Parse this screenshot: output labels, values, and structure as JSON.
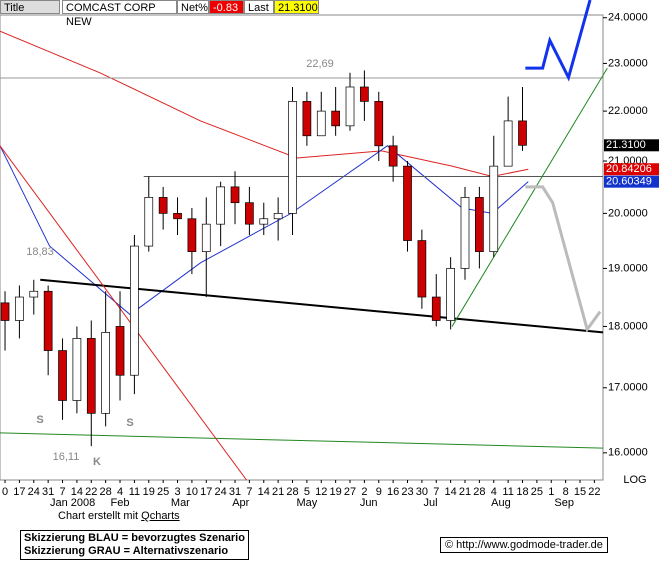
{
  "header": {
    "title_box": "Title",
    "name": "COMCAST CORP NEW",
    "net_label": "Net%",
    "net_value": "-0.83",
    "last_label": "Last",
    "last_value": "21.3100"
  },
  "chart_data": {
    "type": "candlestick",
    "log_scale": true,
    "axis_note": "LOG",
    "x": [
      0,
      1,
      2,
      3,
      4,
      5,
      6,
      7,
      8,
      9,
      10,
      11,
      12,
      13,
      14,
      15,
      16,
      17,
      18,
      19,
      20,
      21,
      22,
      23,
      24,
      25,
      26,
      27,
      28,
      29,
      30,
      31,
      32,
      33,
      34,
      35,
      36
    ],
    "open": [
      18.4,
      18.1,
      18.5,
      18.6,
      17.6,
      16.8,
      17.8,
      16.6,
      18.0,
      17.2,
      19.4,
      20.3,
      20.0,
      19.9,
      19.3,
      19.8,
      20.5,
      20.2,
      19.8,
      19.9,
      20.0,
      22.2,
      21.5,
      22.0,
      21.7,
      22.5,
      22.2,
      21.3,
      20.9,
      19.5,
      18.5,
      18.1,
      19.0,
      20.3,
      19.3,
      20.9,
      21.8
    ],
    "high": [
      18.6,
      18.7,
      18.8,
      18.7,
      17.8,
      18.0,
      18.1,
      18.6,
      18.6,
      19.6,
      20.7,
      20.5,
      20.3,
      20.1,
      20.3,
      20.6,
      20.8,
      20.5,
      20.2,
      20.3,
      22.5,
      22.4,
      22.4,
      22.5,
      22.8,
      22.85,
      22.4,
      21.5,
      21.0,
      19.7,
      18.9,
      19.2,
      20.5,
      20.5,
      21.5,
      22.3,
      22.5
    ],
    "low": [
      17.6,
      17.8,
      18.2,
      17.2,
      16.5,
      16.6,
      16.1,
      16.4,
      16.8,
      16.9,
      19.3,
      19.7,
      19.6,
      18.9,
      18.5,
      19.4,
      19.8,
      19.6,
      19.6,
      19.5,
      19.6,
      21.3,
      21.5,
      21.5,
      21.6,
      21.8,
      21.0,
      20.6,
      19.3,
      18.3,
      18.0,
      17.95,
      18.8,
      19.0,
      19.2,
      20.9,
      21.2
    ],
    "close": [
      18.1,
      18.5,
      18.6,
      17.6,
      16.8,
      17.8,
      16.6,
      17.9,
      17.2,
      19.4,
      20.3,
      20.0,
      19.9,
      19.3,
      19.8,
      20.5,
      20.2,
      19.8,
      19.9,
      20.0,
      22.2,
      21.5,
      22.0,
      21.7,
      22.5,
      22.2,
      21.3,
      20.9,
      19.5,
      18.5,
      18.1,
      19.0,
      20.3,
      19.3,
      20.9,
      21.8,
      21.31
    ],
    "up_color": "#ffffff",
    "down_color": "#cc0000",
    "xlim": [
      -0.35,
      41.6
    ],
    "ylim": [
      15.6,
      24.4
    ],
    "yticks": [
      {
        "value": 16,
        "label": "16.0000"
      },
      {
        "value": 17,
        "label": "17.0000"
      },
      {
        "value": 18,
        "label": "18.0000"
      },
      {
        "value": 19,
        "label": "19.0000"
      },
      {
        "value": 20,
        "label": "20.0000"
      },
      {
        "value": 21,
        "label": "21.0000"
      },
      {
        "value": 22,
        "label": "22.0000"
      },
      {
        "value": 23,
        "label": "23.0000"
      },
      {
        "value": 24,
        "label": "24.0000"
      }
    ],
    "xticks": [
      {
        "value": 0,
        "label": "0"
      },
      {
        "value": 1,
        "label": "17"
      },
      {
        "value": 2,
        "label": "24"
      },
      {
        "value": 3,
        "label": "31"
      },
      {
        "value": 4,
        "label": "7"
      },
      {
        "value": 5,
        "label": "14"
      },
      {
        "value": 6,
        "label": "22"
      },
      {
        "value": 7,
        "label": "28"
      },
      {
        "value": 8,
        "label": "4"
      },
      {
        "value": 9,
        "label": "11"
      },
      {
        "value": 10,
        "label": "19"
      },
      {
        "value": 11,
        "label": "25"
      },
      {
        "value": 12,
        "label": "3"
      },
      {
        "value": 13,
        "label": "10"
      },
      {
        "value": 14,
        "label": "17"
      },
      {
        "value": 15,
        "label": "24"
      },
      {
        "value": 16,
        "label": "31"
      },
      {
        "value": 17,
        "label": "7"
      },
      {
        "value": 18,
        "label": "14"
      },
      {
        "value": 19,
        "label": "21"
      },
      {
        "value": 20,
        "label": "28"
      },
      {
        "value": 21,
        "label": "5"
      },
      {
        "value": 22,
        "label": "12"
      },
      {
        "value": 23,
        "label": "19"
      },
      {
        "value": 24,
        "label": "27"
      },
      {
        "value": 25,
        "label": "2"
      },
      {
        "value": 26,
        "label": "9"
      },
      {
        "value": 27,
        "label": "16"
      },
      {
        "value": 28,
        "label": "23"
      },
      {
        "value": 29,
        "label": "30"
      },
      {
        "value": 30,
        "label": "7"
      },
      {
        "value": 31,
        "label": "14"
      },
      {
        "value": 32,
        "label": "21"
      },
      {
        "value": 33,
        "label": "28"
      },
      {
        "value": 34,
        "label": "4"
      },
      {
        "value": 35,
        "label": "11"
      },
      {
        "value": 36,
        "label": "18"
      },
      {
        "value": 37,
        "label": "25"
      },
      {
        "value": 38,
        "label": "1"
      },
      {
        "value": 39,
        "label": "8"
      },
      {
        "value": 40,
        "label": "15"
      },
      {
        "value": 41,
        "label": "22"
      }
    ],
    "month_ticks": [
      {
        "value": 4.7,
        "label": "Jan 2008"
      },
      {
        "value": 8,
        "label": "Feb"
      },
      {
        "value": 12.2,
        "label": "Mar"
      },
      {
        "value": 16.4,
        "label": "Apr"
      },
      {
        "value": 21,
        "label": "May"
      },
      {
        "value": 25.3,
        "label": "Jun"
      },
      {
        "value": 29.6,
        "label": "Jul"
      },
      {
        "value": 34.5,
        "label": "Aug"
      },
      {
        "value": 38.9,
        "label": "Sep"
      }
    ],
    "lines": [
      {
        "color": "#dd2222",
        "width": 1,
        "x": [
          -0.35,
          6.6,
          13.6,
          20.3,
          26.2,
          31.1,
          33.9,
          36.4
        ],
        "values": [
          23.7,
          22.8,
          21.8,
          21.06,
          21.2,
          20.9,
          20.7,
          20.84
        ]
      },
      {
        "color": "#2233cc",
        "width": 1,
        "x": [
          -0.35,
          3.1,
          8.7,
          13.6,
          19.9,
          26.6,
          31.8,
          33.9,
          36.4
        ],
        "values": [
          21.3,
          19.4,
          18.2,
          19.1,
          20.0,
          21.3,
          20.1,
          20.0,
          20.6
        ]
      },
      {
        "color": "#999999",
        "width": 1,
        "x": [
          -0.35,
          41.6
        ],
        "values": [
          22.69,
          22.69
        ]
      },
      {
        "color": "#555555",
        "width": 1,
        "x": [
          9.65,
          41.6
        ],
        "values": [
          20.7,
          20.7
        ]
      },
      {
        "color": "#000000",
        "width": 2,
        "x": [
          2.45,
          41.6
        ],
        "values": [
          18.8,
          17.9
        ]
      },
      {
        "color": "#228822",
        "width": 1,
        "x": [
          -0.35,
          41.6
        ],
        "values": [
          16.3,
          16.07
        ]
      },
      {
        "color": "#dd2222",
        "width": 1,
        "x": [
          -0.35,
          16.8
        ],
        "values": [
          21.3,
          15.6
        ]
      },
      {
        "color": "#228822",
        "width": 1,
        "x": [
          31.1,
          41.9
        ],
        "values": [
          18.0,
          22.9
        ]
      },
      {
        "color": "#1133ee",
        "width": 3,
        "x": [
          36.2,
          37.4,
          37.9,
          39.2,
          40.7
        ],
        "values": [
          22.9,
          22.9,
          23.5,
          22.7,
          24.4
        ]
      },
      {
        "color": "#bbbbbb",
        "width": 3,
        "x": [
          36.2,
          37.4,
          38.1,
          40.5,
          41.4
        ],
        "values": [
          20.5,
          20.5,
          20.2,
          17.95,
          18.25
        ]
      }
    ],
    "price_tags": [
      {
        "value": 21.31,
        "label": "21.3100",
        "color": "#000000"
      },
      {
        "value": 20.84,
        "label": "20.84206",
        "color": "#dd0000"
      },
      {
        "value": 20.6,
        "label": "20.60349",
        "color": "#1133cc"
      }
    ],
    "annotations": [
      "22,69",
      "18,83",
      "16,11",
      "K",
      "S",
      "S"
    ]
  },
  "footer": {
    "credit": "Chart erstellt mit ",
    "credit_link": "Qcharts",
    "legend_1": "Skizzierung BLAU = bevorzugtes Szenario",
    "legend_2": "Skizzierung GRAU = Alternativszenario",
    "url": "© http://www.godmode-trader.de"
  }
}
